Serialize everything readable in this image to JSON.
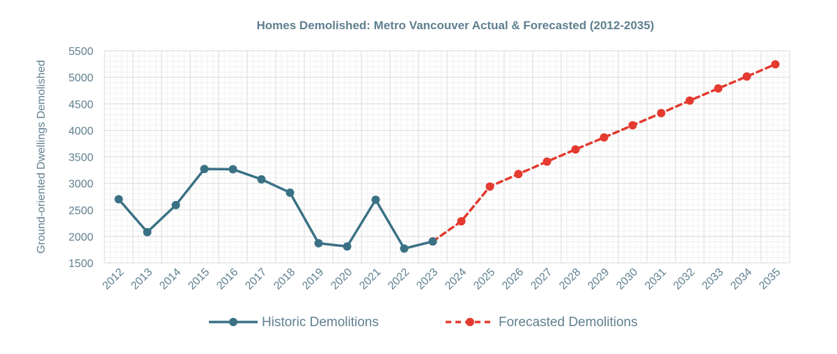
{
  "chart_data": {
    "type": "line",
    "title": "Homes Demolished: Metro Vancouver Actual & Forecasted (2012-2035)",
    "xlabel": "",
    "ylabel": "Ground-oriented Dwellings Demolished",
    "categories": [
      "2012",
      "2013",
      "2014",
      "2015",
      "2016",
      "2017",
      "2018",
      "2019",
      "2020",
      "2021",
      "2022",
      "2023",
      "2024",
      "2025",
      "2026",
      "2027",
      "2028",
      "2029",
      "2030",
      "2031",
      "2032",
      "2033",
      "2034",
      "2035"
    ],
    "ylim": [
      1500,
      5500
    ],
    "yticks": [
      1500,
      2000,
      2500,
      3000,
      3500,
      4000,
      4500,
      5000,
      5500
    ],
    "grid": true,
    "legend_position": "bottom",
    "series": [
      {
        "name": "Historic Demolitions",
        "color": "#3a7185",
        "style": "solid",
        "values": [
          2700,
          2080,
          2590,
          3270,
          3265,
          3075,
          2825,
          1870,
          1810,
          2690,
          1770,
          1905,
          null,
          null,
          null,
          null,
          null,
          null,
          null,
          null,
          null,
          null,
          null,
          null
        ]
      },
      {
        "name": "Forecasted Demolitions",
        "color": "#e43a2f",
        "style": "dashed",
        "values": [
          null,
          null,
          null,
          null,
          null,
          null,
          null,
          null,
          null,
          null,
          null,
          1905,
          2285,
          2940,
          3175,
          3410,
          3640,
          3865,
          4095,
          4325,
          4560,
          4790,
          5015,
          5245
        ]
      }
    ]
  }
}
